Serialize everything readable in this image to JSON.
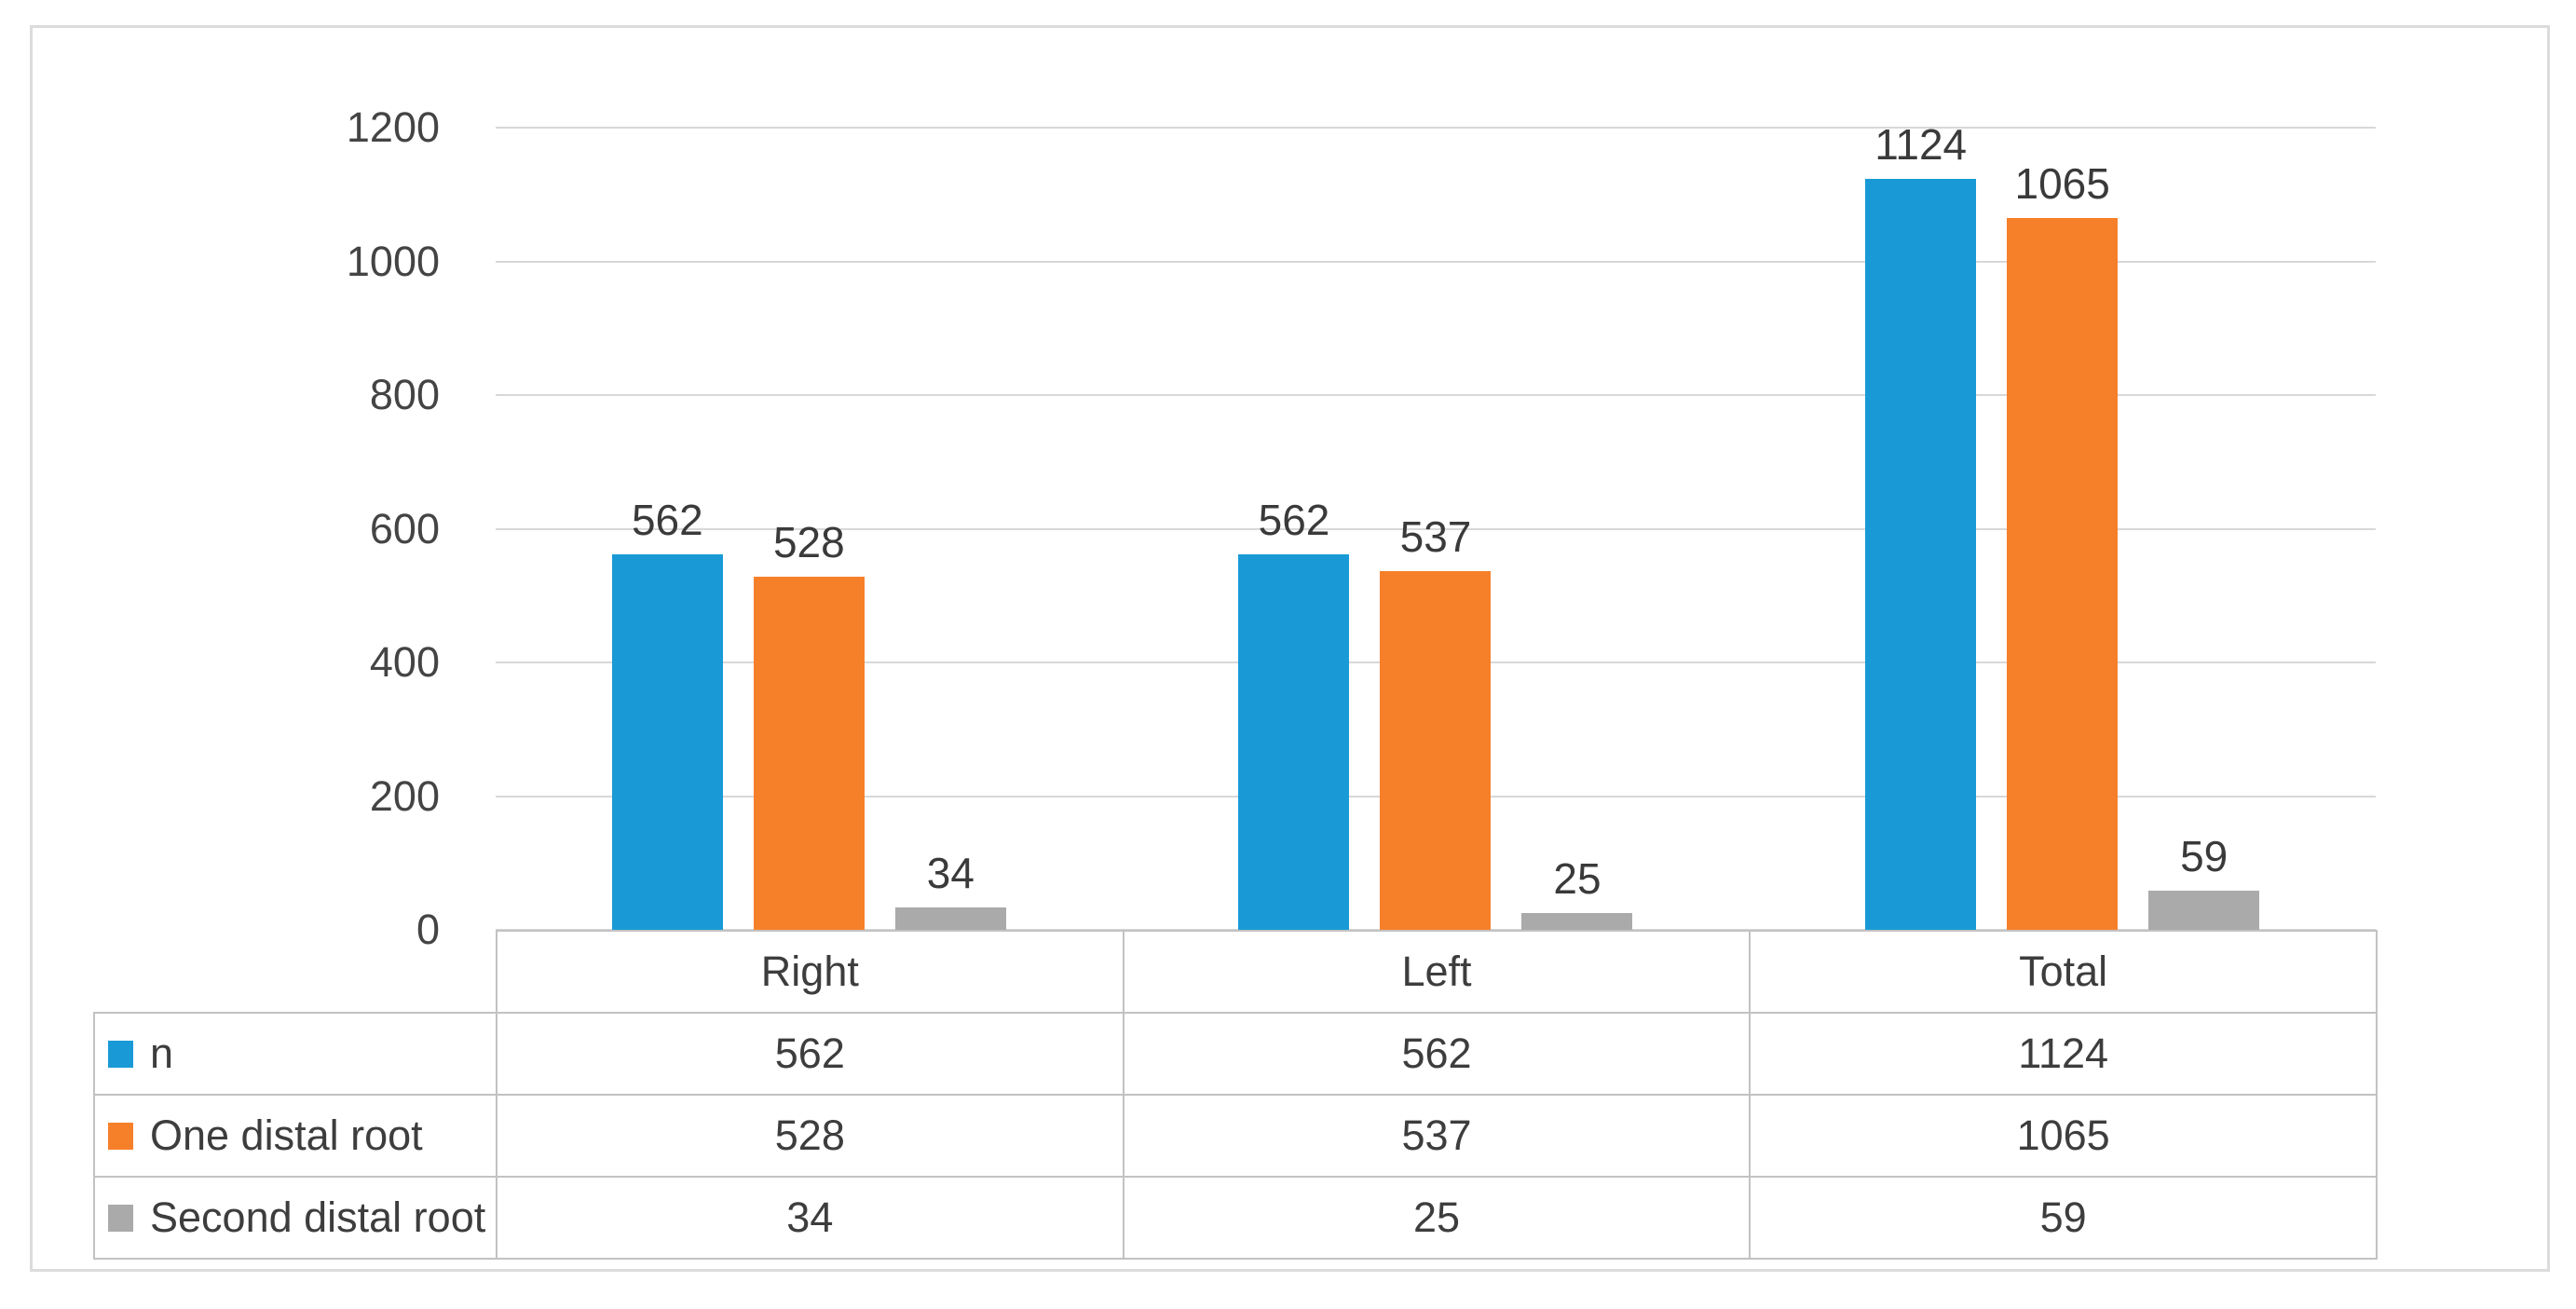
{
  "chart_data": {
    "type": "bar",
    "title": "",
    "xlabel": "",
    "ylabel": "",
    "categories": [
      "Right",
      "Left",
      "Total"
    ],
    "series": [
      {
        "name": "n",
        "color": "#199ad6",
        "values": [
          562,
          562,
          1124
        ]
      },
      {
        "name": "One distal root",
        "color": "#f6802a",
        "values": [
          528,
          537,
          1065
        ]
      },
      {
        "name": "Second distal root",
        "color": "#aaaaaa",
        "values": [
          34,
          25,
          59
        ]
      }
    ],
    "y_ticks": [
      0,
      200,
      400,
      600,
      800,
      1000,
      1200
    ],
    "ylim": [
      0,
      1200
    ],
    "grid": true,
    "data_labels": true,
    "legend_position": "table-left",
    "data_table_shown": true
  },
  "colors": {
    "gridline": "#d8d8d8",
    "table_border": "#c2c2c2",
    "frame_border": "#dcdcdc",
    "text": "#3d3d3d",
    "background": "#ffffff"
  }
}
